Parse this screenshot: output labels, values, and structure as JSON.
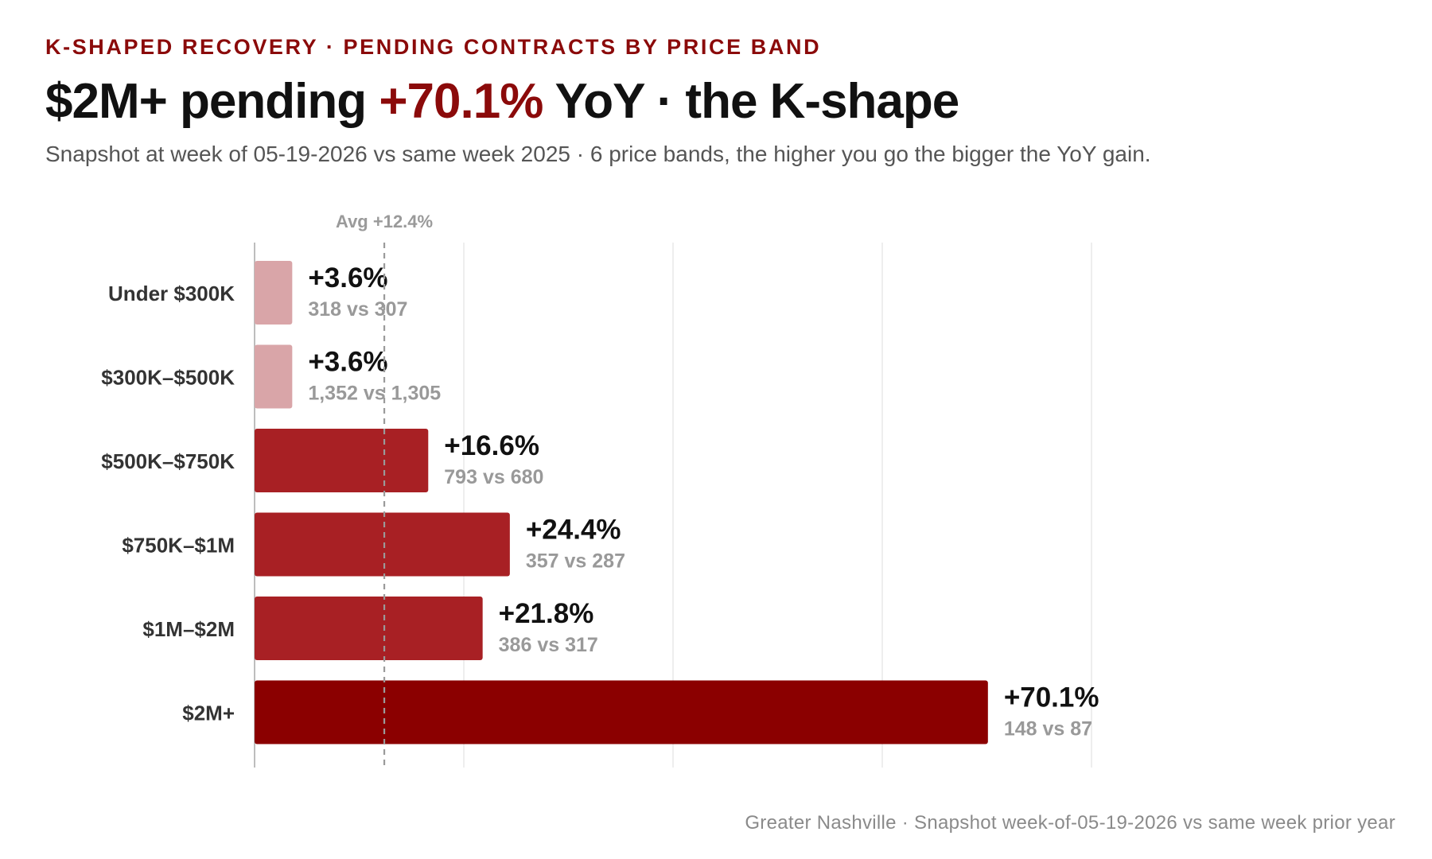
{
  "header": {
    "kicker": "K-SHAPED RECOVERY · PENDING CONTRACTS BY PRICE BAND",
    "headline_prefix": "$2M+ pending ",
    "headline_highlight": "+70.1%",
    "headline_suffix": " YoY · the K‑shape",
    "subtitle": "Snapshot at week of 05-19-2026 vs same week 2025 · 6 price bands, the higher you go the bigger the YoY gain."
  },
  "footer": {
    "text": "Greater Nashville · Snapshot week-of-05-19-2026 vs same week prior year"
  },
  "chart_data": {
    "type": "bar",
    "orientation": "horizontal",
    "categories": [
      "Under $300K",
      "$300K–$500K",
      "$500K–$750K",
      "$750K–$1M",
      "$1M–$2M",
      "$2M+"
    ],
    "values": [
      3.6,
      3.6,
      16.6,
      24.4,
      21.8,
      70.1
    ],
    "value_labels": [
      "+3.6%",
      "+3.6%",
      "+16.6%",
      "+24.4%",
      "+21.8%",
      "+70.1%"
    ],
    "detail_labels": [
      "318 vs 307",
      "1,352 vs 1,305",
      "793 vs 680",
      "357 vs 287",
      "386 vs 317",
      "148 vs 87"
    ],
    "current": [
      318,
      1352,
      793,
      357,
      386,
      148
    ],
    "prior": [
      307,
      1305,
      680,
      287,
      317,
      87
    ],
    "average": {
      "value": 12.4,
      "label": "Avg +12.4%"
    },
    "xlim": [
      0,
      80
    ],
    "gridlines": [
      0,
      20,
      40,
      60,
      80
    ],
    "colors": {
      "low": "#d9a5a8",
      "mid": "#a82024",
      "top": "#8b0000",
      "avg_line": "#9a9a9a",
      "grid": "#e8e8e8",
      "axis": "#bdbdbd",
      "value_label": "#111111",
      "detail_label": "#999999",
      "category_label": "#333333"
    }
  }
}
